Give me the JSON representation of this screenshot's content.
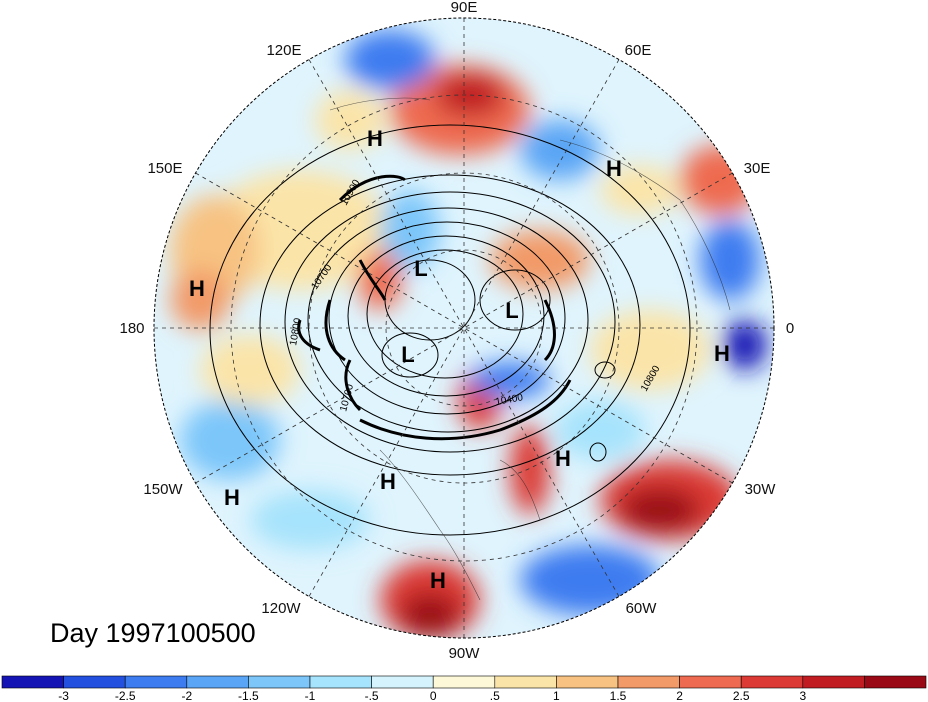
{
  "day_label": "Day 1997100500",
  "lon_labels": [
    {
      "text": "90E",
      "key": "n"
    },
    {
      "text": "60E",
      "key": "ne1"
    },
    {
      "text": "30E",
      "key": "ne2"
    },
    {
      "text": "0",
      "key": "e"
    },
    {
      "text": "30W",
      "key": "se2"
    },
    {
      "text": "60W",
      "key": "se1"
    },
    {
      "text": "90W",
      "key": "s"
    },
    {
      "text": "120W",
      "key": "sw1"
    },
    {
      "text": "150W",
      "key": "sw2"
    },
    {
      "text": "180",
      "key": "w"
    },
    {
      "text": "150E",
      "key": "nw2"
    },
    {
      "text": "120E",
      "key": "nw1"
    }
  ],
  "pressure_centers": [
    {
      "type": "H",
      "key": "h1"
    },
    {
      "type": "H",
      "key": "h2"
    },
    {
      "type": "H",
      "key": "h3"
    },
    {
      "type": "H",
      "key": "h4"
    },
    {
      "type": "H",
      "key": "h5"
    },
    {
      "type": "H",
      "key": "h6"
    },
    {
      "type": "H",
      "key": "h7"
    },
    {
      "type": "H",
      "key": "h8"
    },
    {
      "type": "L",
      "key": "l1"
    },
    {
      "type": "L",
      "key": "l2"
    },
    {
      "type": "L",
      "key": "l3"
    }
  ],
  "contour_labels": [
    "10900",
    "10700",
    "10800",
    "10700",
    "10400",
    "10800"
  ],
  "colorbar": {
    "colors": [
      "#1414b4",
      "#2450e0",
      "#3c7cf0",
      "#5aa5f5",
      "#7cc6fa",
      "#a6e3fc",
      "#d4f3fd",
      "#fdf8d8",
      "#fbe4a8",
      "#f7c282",
      "#f29a68",
      "#ee6a50",
      "#dc3a34",
      "#c01c22",
      "#9a0a16"
    ],
    "labels": [
      "-3",
      "-2.5",
      "-2",
      "-1.5",
      "-1",
      "-.5",
      "0",
      ".5",
      "1",
      "1.5",
      "2",
      "2.5",
      "3"
    ]
  }
}
